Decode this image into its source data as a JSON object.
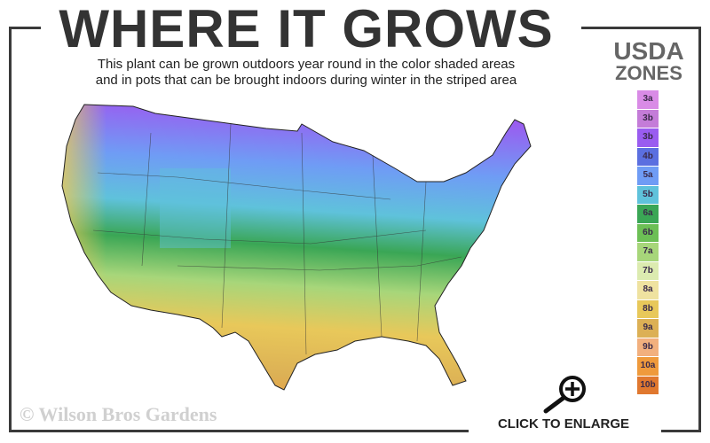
{
  "header": {
    "title": "WHERE IT GROWS",
    "subtitle_lines": [
      "This plant can be grown outdoors year round in the color shaded areas",
      "and in pots that can be brought indoors during winter in the striped area"
    ]
  },
  "legend": {
    "title_line1": "USDA",
    "title_line2": "ZONES",
    "zones": [
      {
        "label": "3a",
        "color": "#d98be6"
      },
      {
        "label": "3b",
        "color": "#c47cd8"
      },
      {
        "label": "3b",
        "color": "#9a5cf0"
      },
      {
        "label": "4b",
        "color": "#5b6fe0"
      },
      {
        "label": "5a",
        "color": "#6f9cf5"
      },
      {
        "label": "5b",
        "color": "#5fc2db"
      },
      {
        "label": "6a",
        "color": "#3aa655"
      },
      {
        "label": "6b",
        "color": "#6cbf55"
      },
      {
        "label": "7a",
        "color": "#a7d67a"
      },
      {
        "label": "7b",
        "color": "#dcebb0"
      },
      {
        "label": "8a",
        "color": "#efe2a0"
      },
      {
        "label": "8b",
        "color": "#e8c85a"
      },
      {
        "label": "9a",
        "color": "#dcb055"
      },
      {
        "label": "9b",
        "color": "#f2b07e"
      },
      {
        "label": "10a",
        "color": "#ef9a3c"
      },
      {
        "label": "10b",
        "color": "#e0782f"
      }
    ]
  },
  "watermark": "© Wilson Bros Gardens",
  "enlarge_label": "CLICK TO ENLARGE",
  "icons": {
    "enlarge": "magnifier-plus-icon"
  }
}
